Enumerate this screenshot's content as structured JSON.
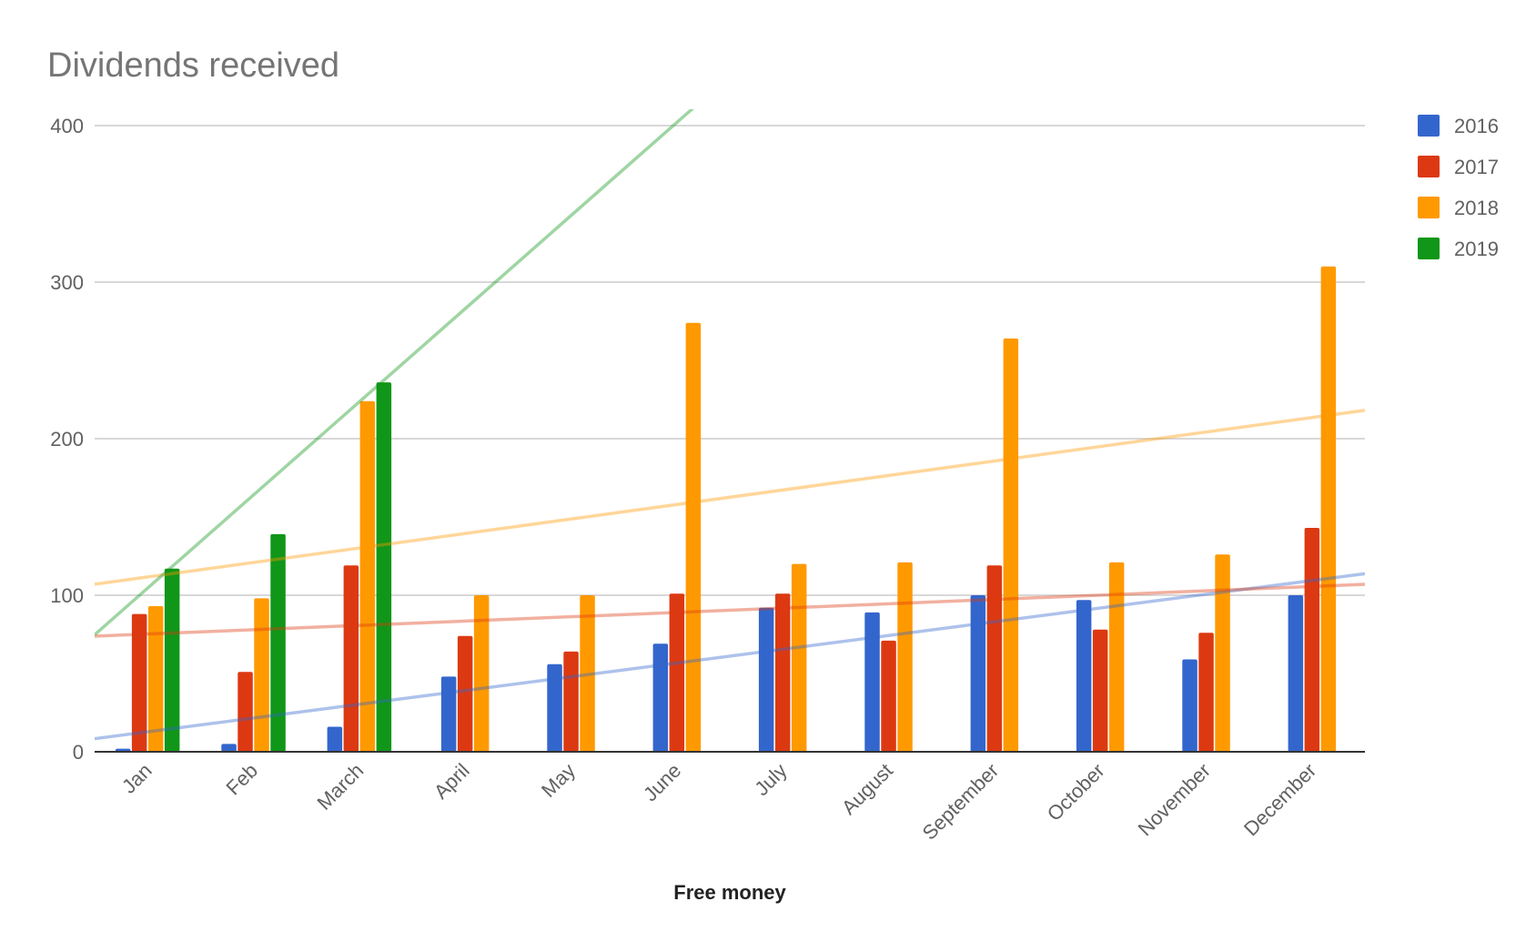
{
  "chart_data": {
    "type": "bar",
    "title": "Dividends received",
    "xlabel": "Free money",
    "ylabel": "",
    "ylim": [
      0,
      400
    ],
    "yticks": [
      0,
      100,
      200,
      300,
      400
    ],
    "grid": true,
    "legend_position": "right",
    "categories": [
      "Jan",
      "Feb",
      "March",
      "April",
      "May",
      "June",
      "July",
      "August",
      "September",
      "October",
      "November",
      "December"
    ],
    "series": [
      {
        "name": "2016",
        "color": "#3366cc",
        "values": [
          2,
          5,
          16,
          48,
          56,
          69,
          92,
          89,
          100,
          97,
          59,
          100
        ]
      },
      {
        "name": "2017",
        "color": "#dc3912",
        "values": [
          88,
          51,
          119,
          74,
          64,
          101,
          101,
          71,
          119,
          78,
          76,
          143
        ]
      },
      {
        "name": "2018",
        "color": "#ff9900",
        "values": [
          93,
          98,
          224,
          100,
          100,
          274,
          120,
          121,
          264,
          121,
          126,
          310
        ]
      },
      {
        "name": "2019",
        "color": "#109618",
        "values": [
          117,
          139,
          236,
          null,
          null,
          null,
          null,
          null,
          null,
          null,
          null,
          null
        ]
      }
    ],
    "trendlines": [
      {
        "series": "2016",
        "type": "linear"
      },
      {
        "series": "2017",
        "type": "linear"
      },
      {
        "series": "2018",
        "type": "linear"
      },
      {
        "series": "2019",
        "type": "linear"
      }
    ]
  }
}
